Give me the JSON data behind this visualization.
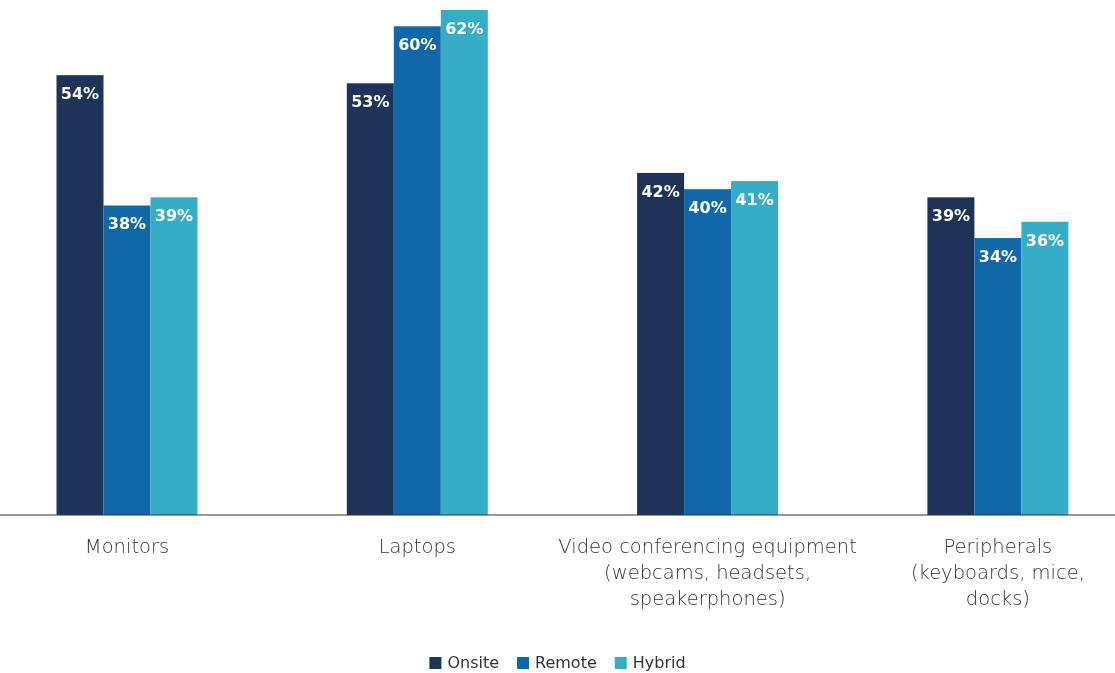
{
  "chart_data": {
    "type": "bar",
    "categories": [
      "Monitors",
      "Laptops",
      "Video conferencing equipment\n(webcams, headsets,\nspeakerphones)",
      "Peripherals\n(keyboards, mice,\ndocks)"
    ],
    "series": [
      {
        "name": "Onsite",
        "color": "#1d3358",
        "values": [
          54,
          53,
          42,
          39
        ],
        "value_labels": [
          "54%",
          "53%",
          "42%",
          "39%"
        ]
      },
      {
        "name": "Remote",
        "color": "#1068a8",
        "values": [
          38,
          60,
          40,
          34
        ],
        "value_labels": [
          "38%",
          "60%",
          "40%",
          "34%"
        ]
      },
      {
        "name": "Hybrid",
        "color": "#35adc7",
        "values": [
          39,
          62,
          41,
          36
        ],
        "value_labels": [
          "39%",
          "62%",
          "41%",
          "36%"
        ]
      }
    ],
    "legend": "bottom"
  }
}
